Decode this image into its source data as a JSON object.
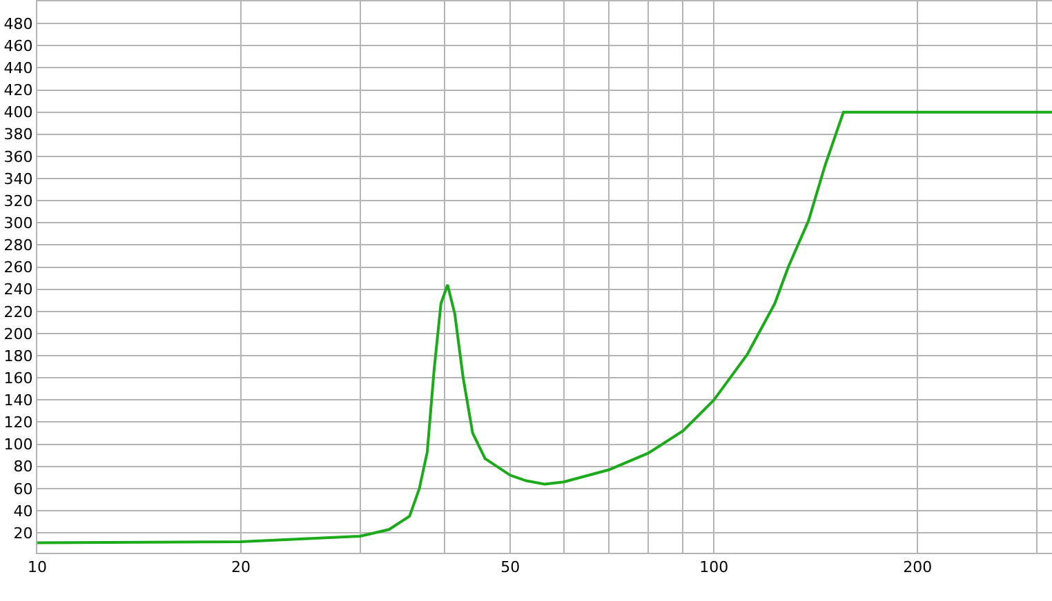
{
  "chart_data": {
    "type": "line",
    "log": "x",
    "grid": true,
    "marker": "none",
    "line_style": "solid",
    "xlim": [
      10,
      316
    ],
    "xticks": [
      10,
      20,
      {
        "value": 30,
        "label": null
      },
      {
        "value": 40,
        "label": null
      },
      50,
      {
        "value": 60,
        "label": null
      },
      {
        "value": 70,
        "label": null
      },
      {
        "value": 80,
        "label": null
      },
      {
        "value": 90,
        "label": null
      },
      100,
      200,
      {
        "value": 300,
        "label": null
      }
    ],
    "ylim": [
      2,
      500
    ],
    "yticks": [
      20,
      40,
      60,
      80,
      100,
      120,
      140,
      160,
      180,
      200,
      220,
      240,
      260,
      280,
      300,
      320,
      340,
      360,
      380,
      400,
      420,
      440,
      460,
      480
    ],
    "series": [
      {
        "color": "#1aaa1a",
        "x": [
          10,
          20,
          30,
          33.1,
          35.5,
          36.7,
          37.7,
          38.6,
          39.5,
          40.4,
          41.4,
          42.6,
          44,
          45.9,
          50,
          52.8,
          56.2,
          60,
          70,
          80,
          90,
          100,
          112,
          123,
          128.8,
          138,
          146,
          155.4,
          316
        ],
        "values": [
          11,
          12,
          17,
          23,
          35,
          60,
          93,
          168,
          227,
          244,
          218,
          160,
          110,
          87,
          72,
          67,
          64,
          66,
          77,
          92,
          112,
          140,
          181,
          227,
          260,
          302,
          352,
          400,
          400
        ]
      }
    ]
  }
}
